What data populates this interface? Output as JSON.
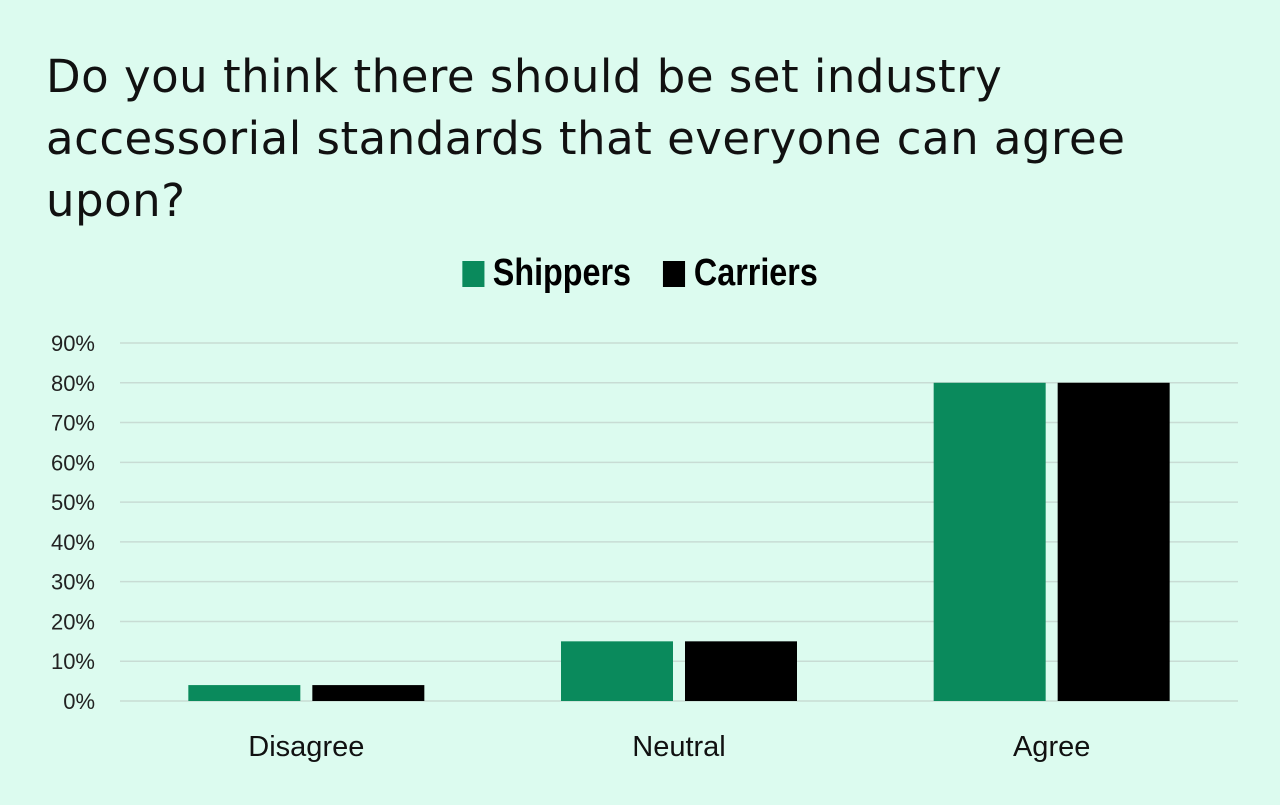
{
  "chart_data": {
    "type": "bar",
    "title": "Do you think there should be set industry accessorial standards that everyone can agree upon?",
    "categories": [
      "Disagree",
      "Neutral",
      "Agree"
    ],
    "series": [
      {
        "name": "Shippers",
        "values": [
          4,
          15,
          80
        ],
        "color": "#0a8a5c"
      },
      {
        "name": "Carriers",
        "values": [
          4,
          15,
          80
        ],
        "color": "#000000"
      }
    ],
    "yticks": [
      "0%",
      "10%",
      "20%",
      "30%",
      "40%",
      "50%",
      "60%",
      "70%",
      "80%",
      "90%"
    ],
    "ylim": [
      0,
      90
    ],
    "unit": "%",
    "grid": true,
    "legend": "top-center"
  },
  "colors": {
    "background": "#dcfbef",
    "grid": "#c8dcd4"
  }
}
